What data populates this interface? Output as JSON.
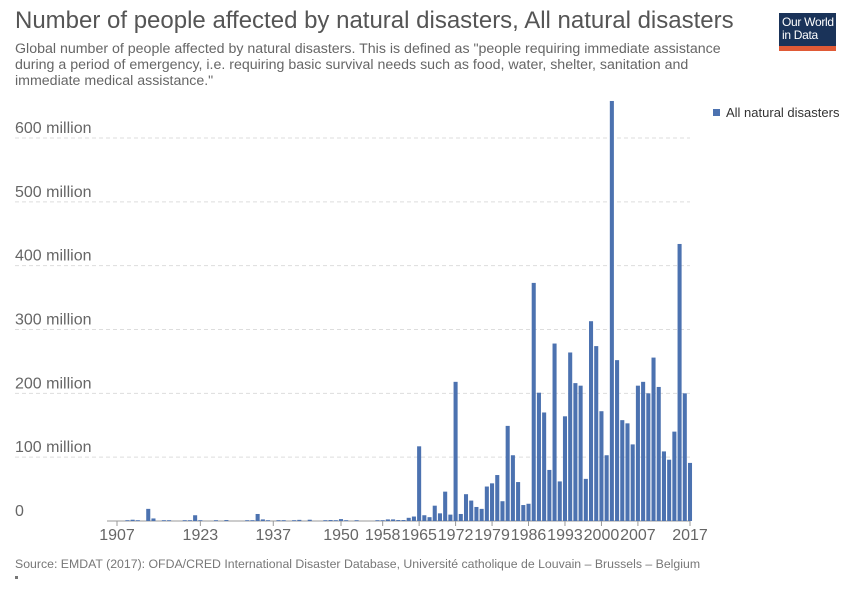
{
  "header": {
    "title": "Number of people affected by natural disasters, All natural disasters",
    "subtitle": "Global number of people affected by natural disasters. This is defined as \"people requiring immediate assistance during a period of emergency, i.e. requiring basic survival needs such as food, water, shelter, sanitation and immediate medical assistance.\"",
    "logo_line1": "Our World",
    "logo_line2": "in Data"
  },
  "footer": {
    "source": "Source: EMDAT (2017): OFDA/CRED International Disaster Database, Université catholique de Louvain – Brussels – Belgium"
  },
  "colors": {
    "bar": "#4c72b0",
    "grid": "#dddddd",
    "logo_bg": "#1a3359",
    "logo_accent": "#e05a36"
  },
  "chart_data": {
    "type": "bar",
    "title": "Number of people affected by natural disasters, All natural disasters",
    "ylim": [
      0,
      660000000
    ],
    "grid": true,
    "legend_position": "top-right",
    "y_ticks": [
      0,
      100000000,
      200000000,
      300000000,
      400000000,
      500000000,
      600000000
    ],
    "y_tick_labels": [
      "0",
      "100 million",
      "200 million",
      "300 million",
      "400 million",
      "500 million",
      "600 million"
    ],
    "x_ticks": [
      1907,
      1923,
      1937,
      1950,
      1958,
      1965,
      1972,
      1979,
      1986,
      1993,
      2000,
      2007,
      2017
    ],
    "x_tick_labels": [
      "1907",
      "1923",
      "1937",
      "1950",
      "1958",
      "1965",
      "1972",
      "1979",
      "1986",
      "1993",
      "2000",
      "2007",
      "2017"
    ],
    "series": [
      {
        "name": "All natural disasters",
        "points": [
          [
            1909,
            400000
          ],
          [
            1910,
            2000000
          ],
          [
            1911,
            500000
          ],
          [
            1913,
            19000000
          ],
          [
            1914,
            4000000
          ],
          [
            1916,
            1000000
          ],
          [
            1917,
            200000
          ],
          [
            1920,
            300000
          ],
          [
            1921,
            300000
          ],
          [
            1922,
            9000000
          ],
          [
            1923,
            300000
          ],
          [
            1926,
            400000
          ],
          [
            1928,
            1500000
          ],
          [
            1932,
            400000
          ],
          [
            1933,
            1000000
          ],
          [
            1934,
            11000000
          ],
          [
            1935,
            2500000
          ],
          [
            1936,
            500000
          ],
          [
            1938,
            600000
          ],
          [
            1939,
            400000
          ],
          [
            1941,
            300000
          ],
          [
            1942,
            1800000
          ],
          [
            1944,
            2000000
          ],
          [
            1947,
            300000
          ],
          [
            1948,
            1500000
          ],
          [
            1949,
            1000000
          ],
          [
            1950,
            3000000
          ],
          [
            1951,
            1200000
          ],
          [
            1953,
            1000000
          ],
          [
            1957,
            1000000
          ],
          [
            1958,
            800000
          ],
          [
            1959,
            2500000
          ],
          [
            1960,
            2500000
          ],
          [
            1961,
            1500000
          ],
          [
            1962,
            1500000
          ],
          [
            1963,
            5000000
          ],
          [
            1964,
            7000000
          ],
          [
            1965,
            117000000
          ],
          [
            1966,
            9000000
          ],
          [
            1967,
            6000000
          ],
          [
            1968,
            24000000
          ],
          [
            1969,
            12000000
          ],
          [
            1970,
            46000000
          ],
          [
            1971,
            10000000
          ],
          [
            1972,
            218000000
          ],
          [
            1973,
            11000000
          ],
          [
            1974,
            42000000
          ],
          [
            1975,
            32000000
          ],
          [
            1976,
            22000000
          ],
          [
            1977,
            19000000
          ],
          [
            1978,
            54000000
          ],
          [
            1979,
            59000000
          ],
          [
            1980,
            72000000
          ],
          [
            1981,
            31000000
          ],
          [
            1982,
            149000000
          ],
          [
            1983,
            103000000
          ],
          [
            1984,
            61000000
          ],
          [
            1985,
            25000000
          ],
          [
            1986,
            27000000
          ],
          [
            1987,
            373000000
          ],
          [
            1988,
            201000000
          ],
          [
            1989,
            170000000
          ],
          [
            1990,
            80000000
          ],
          [
            1991,
            278000000
          ],
          [
            1992,
            62000000
          ],
          [
            1993,
            164000000
          ],
          [
            1994,
            264000000
          ],
          [
            1995,
            216000000
          ],
          [
            1996,
            212000000
          ],
          [
            1997,
            66000000
          ],
          [
            1998,
            313000000
          ],
          [
            1999,
            274000000
          ],
          [
            2000,
            172000000
          ],
          [
            2001,
            103000000
          ],
          [
            2002,
            658000000
          ],
          [
            2003,
            252000000
          ],
          [
            2004,
            158000000
          ],
          [
            2005,
            153000000
          ],
          [
            2006,
            120000000
          ],
          [
            2007,
            212000000
          ],
          [
            2008,
            218000000
          ],
          [
            2009,
            200000000
          ],
          [
            2010,
            256000000
          ],
          [
            2011,
            210000000
          ],
          [
            2012,
            109000000
          ],
          [
            2013,
            96000000
          ],
          [
            2014,
            140000000
          ],
          [
            2015,
            434000000
          ],
          [
            2016,
            200000000
          ],
          [
            2017,
            91000000
          ]
        ]
      }
    ]
  }
}
